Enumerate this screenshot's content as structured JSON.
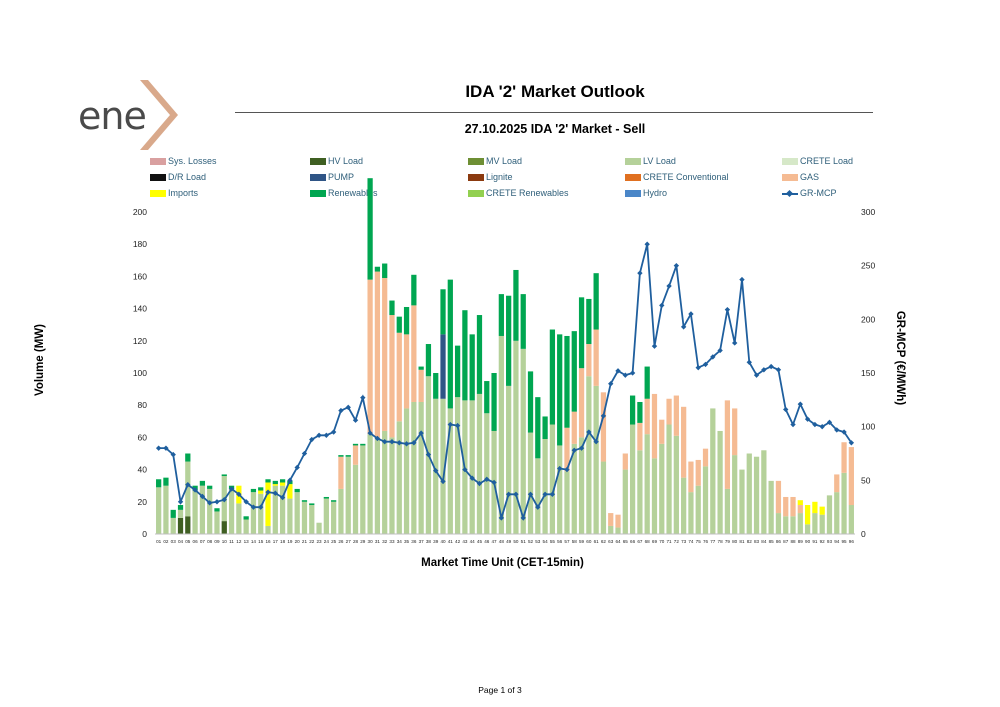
{
  "logo": {
    "text": "ene",
    "mark_color": "#d9a98b"
  },
  "report_title": "IDA '2' Market Outlook",
  "chart_title": "27.10.2025  IDA '2' Market - Sell",
  "page_footer": "Page 1 of 3",
  "chart_data": {
    "type": "bar",
    "stacked": true,
    "title": "27.10.2025  IDA '2' Market - Sell",
    "xlabel": "Market Time Unit (CET-15min)",
    "ylabel": "Volume (MW)",
    "y2label": "GR-MCP (€/MWh)",
    "ylim": [
      0,
      200
    ],
    "y2lim": [
      0,
      300
    ],
    "yticks": [
      "0",
      "20",
      "40",
      "60",
      "80",
      "100",
      "120",
      "140",
      "160",
      "180",
      "200"
    ],
    "y2ticks": [
      "0",
      "50",
      "100",
      "150",
      "200",
      "250",
      "300"
    ],
    "grid": false,
    "legend_position": "top",
    "categories": [
      "01",
      "02",
      "03",
      "04",
      "05",
      "06",
      "07",
      "08",
      "09",
      "10",
      "11",
      "12",
      "13",
      "14",
      "15",
      "16",
      "17",
      "18",
      "19",
      "20",
      "21",
      "22",
      "23",
      "24",
      "25",
      "26",
      "27",
      "28",
      "29",
      "30",
      "31",
      "32",
      "33",
      "34",
      "35",
      "36",
      "37",
      "38",
      "39",
      "40",
      "41",
      "42",
      "43",
      "44",
      "45",
      "46",
      "47",
      "48",
      "49",
      "50",
      "51",
      "52",
      "53",
      "54",
      "55",
      "56",
      "57",
      "58",
      "59",
      "60",
      "61",
      "62",
      "63",
      "64",
      "65",
      "66",
      "67",
      "68",
      "69",
      "70",
      "71",
      "72",
      "73",
      "74",
      "75",
      "76",
      "77",
      "78",
      "79",
      "80",
      "81",
      "82",
      "83",
      "84",
      "85",
      "86",
      "87",
      "88",
      "89",
      "90",
      "91",
      "92",
      "93",
      "94",
      "95",
      "96"
    ],
    "legend": [
      {
        "name": "Sys. Losses",
        "color": "#d9a0a0"
      },
      {
        "name": "HV Load",
        "color": "#3f5f22"
      },
      {
        "name": "MV Load",
        "color": "#6e8f34"
      },
      {
        "name": "LV Load",
        "color": "#b5d19a"
      },
      {
        "name": "CRETE Load",
        "color": "#d6e8c8"
      },
      {
        "name": "D/R Load",
        "color": "#111111"
      },
      {
        "name": "PUMP",
        "color": "#2f5586"
      },
      {
        "name": "Lignite",
        "color": "#8b3a0f"
      },
      {
        "name": "CRETE Conventional",
        "color": "#e07020"
      },
      {
        "name": "GAS",
        "color": "#f5bb93"
      },
      {
        "name": "Imports",
        "color": "#ffff00"
      },
      {
        "name": "Renewables",
        "color": "#00a651"
      },
      {
        "name": "CRETE Renewables",
        "color": "#92d050"
      },
      {
        "name": "Hydro",
        "color": "#4a86c8"
      },
      {
        "name": "GR-MCP",
        "color": "#1f5f9e",
        "kind": "line"
      }
    ],
    "series": [
      {
        "name": "HV Load",
        "values": [
          0,
          0,
          0,
          10,
          11,
          0,
          0,
          0,
          0,
          8,
          0,
          0,
          0,
          0,
          0,
          0,
          0,
          0,
          0,
          0,
          0,
          0,
          0,
          0,
          0,
          0,
          0,
          0,
          0,
          0,
          0,
          0,
          0,
          0,
          0,
          0,
          0,
          0,
          0,
          0,
          0,
          0,
          0,
          0,
          0,
          0,
          0,
          0,
          0,
          0,
          0,
          0,
          0,
          0,
          0,
          0,
          0,
          0,
          0,
          0,
          0,
          0,
          0,
          0,
          0,
          0,
          0,
          0,
          0,
          0,
          0,
          0,
          0,
          0,
          0,
          0,
          0,
          0,
          0,
          0,
          0,
          0,
          0,
          0,
          0,
          0,
          0,
          0,
          0,
          0,
          0,
          0,
          0,
          0,
          0,
          0
        ]
      },
      {
        "name": "LV Load",
        "values": [
          29,
          30,
          10,
          5,
          34,
          27,
          30,
          28,
          14,
          28,
          28,
          19,
          9,
          26,
          25,
          5,
          30,
          30,
          22,
          26,
          20,
          18,
          7,
          22,
          20,
          28,
          48,
          43,
          55,
          62,
          60,
          64,
          60,
          70,
          78,
          82,
          82,
          98,
          84,
          84,
          78,
          85,
          83,
          83,
          87,
          75,
          64,
          123,
          92,
          120,
          115,
          63,
          47,
          59,
          68,
          55,
          39,
          56,
          60,
          98,
          92,
          45,
          5,
          4,
          40,
          68,
          52,
          62,
          47,
          56,
          68,
          61,
          35,
          26,
          30,
          42,
          78,
          64,
          28,
          49,
          40,
          50,
          48,
          52,
          33,
          13,
          11,
          11,
          13,
          6,
          13,
          12,
          24,
          26,
          38,
          18
        ]
      },
      {
        "name": "CRETE Load",
        "values": [
          0,
          0,
          0,
          0,
          0,
          0,
          0,
          0,
          0,
          0,
          0,
          0,
          0,
          0,
          0,
          0,
          0,
          0,
          0,
          0,
          0,
          0,
          0,
          0,
          0,
          0,
          0,
          0,
          0,
          0,
          0,
          0,
          0,
          0,
          0,
          0,
          0,
          0,
          0,
          0,
          0,
          0,
          0,
          0,
          0,
          0,
          0,
          0,
          0,
          0,
          0,
          0,
          0,
          0,
          0,
          0,
          0,
          0,
          0,
          0,
          0,
          0,
          0,
          0,
          0,
          0,
          0,
          0,
          0,
          0,
          0,
          0,
          0,
          0,
          0,
          0,
          0,
          0,
          0,
          0,
          0,
          0,
          0,
          0,
          0,
          0,
          0,
          0,
          0,
          0,
          0,
          0,
          0,
          0,
          0,
          0
        ]
      },
      {
        "name": "GAS",
        "values": [
          0,
          0,
          0,
          0,
          0,
          0,
          0,
          0,
          0,
          0,
          0,
          0,
          0,
          0,
          0,
          0,
          0,
          0,
          0,
          0,
          0,
          0,
          0,
          0,
          0,
          20,
          0,
          12,
          0,
          96,
          103,
          95,
          76,
          55,
          46,
          60,
          20,
          0,
          0,
          0,
          0,
          0,
          0,
          0,
          0,
          0,
          0,
          0,
          0,
          0,
          0,
          0,
          0,
          0,
          0,
          0,
          27,
          20,
          43,
          20,
          35,
          43,
          8,
          8,
          10,
          0,
          17,
          22,
          40,
          15,
          16,
          25,
          44,
          19,
          16,
          11,
          0,
          0,
          55,
          29,
          0,
          0,
          0,
          0,
          0,
          20,
          12,
          12,
          5,
          0,
          0,
          0,
          0,
          11,
          19,
          36
        ]
      },
      {
        "name": "Imports",
        "values": [
          0,
          0,
          0,
          0,
          0,
          0,
          0,
          0,
          0,
          0,
          0,
          11,
          0,
          0,
          2,
          27,
          1,
          2,
          9,
          0,
          0,
          0,
          0,
          0,
          0,
          0,
          0,
          0,
          0,
          0,
          0,
          0,
          0,
          0,
          0,
          0,
          0,
          0,
          0,
          0,
          0,
          0,
          0,
          0,
          0,
          0,
          0,
          0,
          0,
          0,
          0,
          0,
          0,
          0,
          0,
          0,
          0,
          0,
          0,
          0,
          0,
          0,
          0,
          0,
          0,
          0,
          0,
          0,
          0,
          0,
          0,
          0,
          0,
          0,
          0,
          0,
          0,
          0,
          0,
          0,
          0,
          0,
          0,
          0,
          0,
          0,
          0,
          0,
          3,
          12,
          7,
          5,
          0,
          0,
          0,
          0
        ]
      },
      {
        "name": "PUMP",
        "values": [
          0,
          0,
          0,
          0,
          0,
          0,
          0,
          0,
          0,
          0,
          0,
          0,
          0,
          0,
          0,
          0,
          0,
          0,
          0,
          0,
          0,
          0,
          0,
          0,
          0,
          0,
          0,
          0,
          0,
          0,
          0,
          0,
          0,
          0,
          0,
          0,
          0,
          0,
          0,
          40,
          0,
          0,
          0,
          0,
          0,
          0,
          0,
          0,
          0,
          0,
          0,
          0,
          0,
          0,
          0,
          0,
          0,
          0,
          0,
          0,
          0,
          0,
          0,
          0,
          0,
          0,
          0,
          0,
          0,
          0,
          0,
          0,
          0,
          0,
          0,
          0,
          0,
          0,
          0,
          0,
          0,
          0,
          0,
          0,
          0,
          0,
          0,
          0,
          0,
          0,
          0,
          0,
          0,
          0,
          0,
          0
        ]
      },
      {
        "name": "Renewables",
        "values": [
          5,
          5,
          5,
          3,
          5,
          3,
          3,
          2,
          2,
          1,
          2,
          0,
          2,
          2,
          2,
          2,
          2,
          2,
          2,
          2,
          1,
          1,
          0,
          1,
          1,
          1,
          1,
          1,
          1,
          63,
          3,
          9,
          9,
          10,
          17,
          19,
          2,
          20,
          16,
          28,
          80,
          32,
          56,
          41,
          49,
          20,
          36,
          26,
          56,
          44,
          34,
          38,
          38,
          14,
          59,
          69,
          57,
          50,
          44,
          28,
          35,
          0,
          0,
          0,
          0,
          18,
          13,
          20,
          0,
          0,
          0,
          0,
          0,
          0,
          0,
          0,
          0,
          0,
          0,
          0,
          0,
          0,
          0,
          0,
          0,
          0,
          0,
          0,
          0,
          0,
          0,
          0,
          0,
          0,
          0,
          0
        ]
      },
      {
        "name": "CRETE Renewables",
        "values": [
          0,
          0,
          0,
          0,
          0,
          0,
          0,
          0,
          0,
          0,
          0,
          0,
          0,
          0,
          0,
          0,
          0,
          0,
          0,
          0,
          0,
          0,
          0,
          0,
          0,
          0,
          0,
          0,
          0,
          0,
          0,
          0,
          0,
          0,
          0,
          0,
          0,
          0,
          0,
          0,
          0,
          0,
          0,
          0,
          0,
          0,
          0,
          0,
          0,
          0,
          0,
          0,
          0,
          0,
          0,
          0,
          0,
          0,
          0,
          0,
          0,
          0,
          0,
          0,
          0,
          0,
          0,
          0,
          0,
          0,
          0,
          0,
          0,
          0,
          0,
          0,
          0,
          0,
          0,
          0,
          0,
          0,
          0,
          0,
          0,
          0,
          0,
          0,
          0,
          0,
          0,
          0,
          0,
          0,
          0,
          0
        ]
      },
      {
        "name": "GR-MCP",
        "axis": "right",
        "kind": "line",
        "values": [
          80,
          80,
          74,
          30,
          46,
          41,
          35,
          29,
          30,
          32,
          42,
          37,
          30,
          25,
          25,
          39,
          38,
          34,
          50,
          62,
          75,
          88,
          92,
          92,
          95,
          115,
          118,
          106,
          127,
          94,
          89,
          86,
          86,
          85,
          84,
          85,
          94,
          74,
          59,
          49,
          102,
          101,
          60,
          52,
          47,
          51,
          48,
          15,
          37,
          37,
          15,
          37,
          25,
          37,
          37,
          61,
          60,
          78,
          80,
          95,
          86,
          110,
          140,
          152,
          148,
          150,
          243,
          270,
          175,
          213,
          231,
          250,
          193,
          205,
          155,
          158,
          165,
          171,
          209,
          178,
          237,
          160,
          148,
          153,
          156,
          153,
          116,
          102,
          121,
          107,
          102,
          100,
          104,
          97,
          95,
          85
        ]
      }
    ]
  }
}
